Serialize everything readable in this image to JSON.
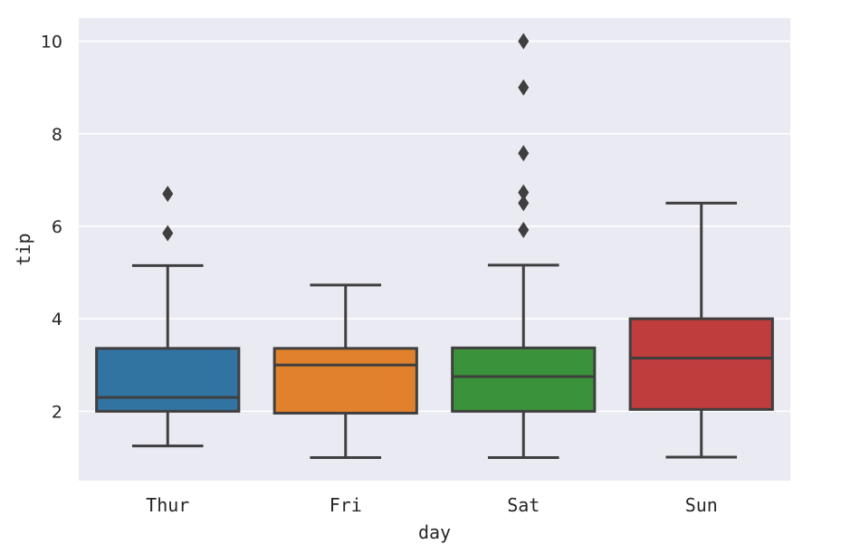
{
  "chart_data": {
    "type": "box",
    "title": "",
    "xlabel": "day",
    "ylabel": "tip",
    "categories": [
      "Thur",
      "Fri",
      "Sat",
      "Sun"
    ],
    "ylim": [
      0.5,
      10.5
    ],
    "yticks": [
      2,
      4,
      6,
      8,
      10
    ],
    "ytick_labels": [
      "2",
      "4",
      "6",
      "8",
      "10"
    ],
    "grid": true,
    "background": "#eaeaf2",
    "grid_color": "#ffffff",
    "line_color": "#3f3f3f",
    "boxes": [
      {
        "category": "Thur",
        "color": "#3274a1",
        "whislo": 1.25,
        "q1": 2.0,
        "median": 2.3,
        "q3": 3.36,
        "whishi": 5.15,
        "fliers": [
          5.85,
          6.7
        ]
      },
      {
        "category": "Fri",
        "color": "#e1812c",
        "whislo": 1.0,
        "q1": 1.96,
        "median": 3.0,
        "q3": 3.36,
        "whishi": 4.73,
        "fliers": []
      },
      {
        "category": "Sat",
        "color": "#3a923a",
        "whislo": 1.0,
        "q1": 2.0,
        "median": 2.75,
        "q3": 3.37,
        "whishi": 5.16,
        "fliers": [
          5.92,
          6.5,
          6.73,
          7.58,
          9.0,
          10.0
        ]
      },
      {
        "category": "Sun",
        "color": "#c03d3e",
        "whislo": 1.01,
        "q1": 2.04,
        "median": 3.15,
        "q3": 4.0,
        "whishi": 6.5,
        "fliers": []
      }
    ]
  }
}
